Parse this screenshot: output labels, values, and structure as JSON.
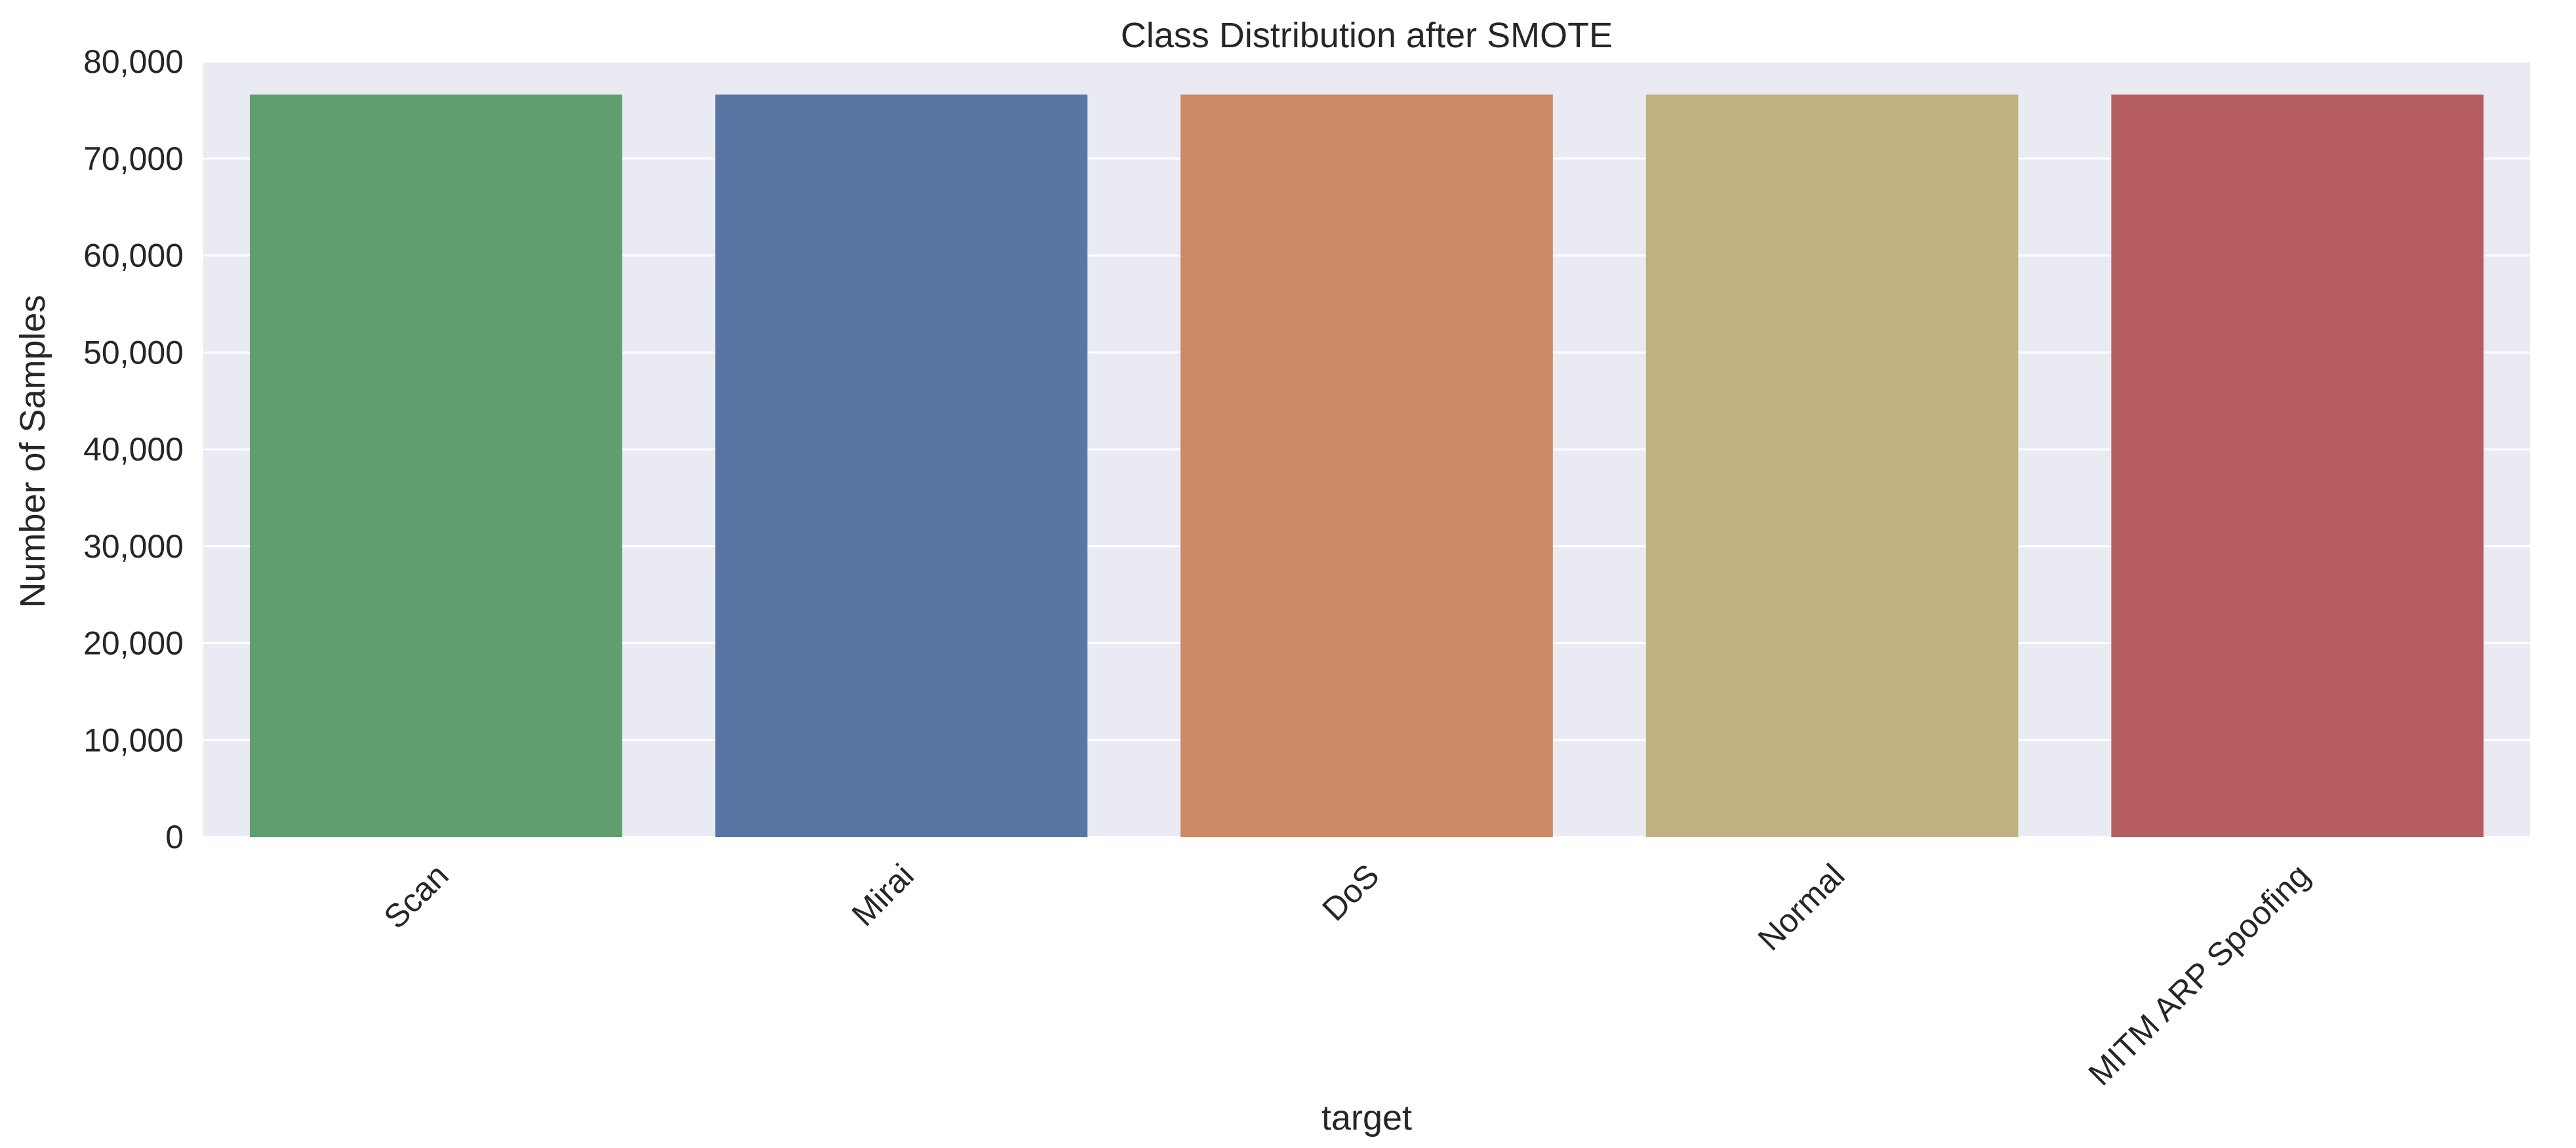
{
  "chart_data": {
    "type": "bar",
    "title": "Class Distribution after SMOTE",
    "xlabel": "target",
    "ylabel": "Number of Samples",
    "categories": [
      "Scan",
      "Mirai",
      "DoS",
      "Normal",
      "MITM ARP Spoofing"
    ],
    "values": [
      76600,
      76600,
      76600,
      76600,
      76600
    ],
    "colors": [
      "#5f9e6e",
      "#5975a4",
      "#cc8963",
      "#c0b27f",
      "#b55d60"
    ],
    "ylim": [
      0,
      80000
    ],
    "yticks": [
      0,
      10000,
      20000,
      30000,
      40000,
      50000,
      60000,
      70000,
      80000
    ],
    "ytick_labels": [
      "0",
      "10,000",
      "20,000",
      "30,000",
      "40,000",
      "50,000",
      "60,000",
      "70,000",
      "80,000"
    ],
    "grid": true,
    "background": "#eaeaf2",
    "grid_color": "#ffffff",
    "xtick_rotation": -45
  }
}
